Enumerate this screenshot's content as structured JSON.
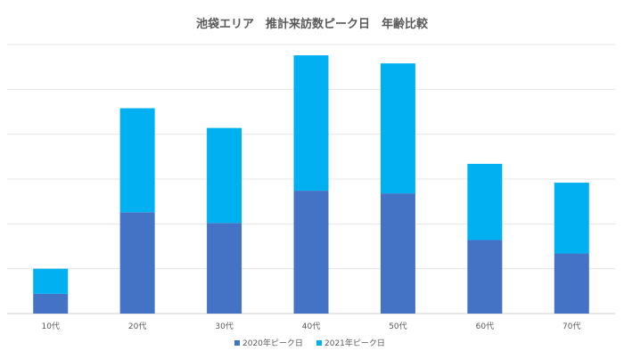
{
  "chart_data": {
    "type": "bar",
    "stacked": true,
    "title": "池袋エリア　推計来訪数ピーク日　年齢比較",
    "categories": [
      "10代",
      "20代",
      "30代",
      "40代",
      "50代",
      "60代",
      "70代"
    ],
    "series": [
      {
        "name": "2020年ピーク日",
        "color": "#4472C4",
        "values": [
          4.4,
          22.6,
          20.2,
          27.4,
          26.8,
          16.4,
          13.4
        ]
      },
      {
        "name": "2021年ピーク日",
        "color": "#00B0F0",
        "values": [
          5.6,
          23.2,
          21.2,
          30.2,
          29.0,
          17.0,
          15.8
        ]
      }
    ],
    "ylim": [
      0,
      61
    ],
    "gridlines": [
      0,
      10,
      20,
      30,
      40,
      50,
      60
    ],
    "grid": true,
    "y_tick_labels_shown": false,
    "legend_position": "bottom"
  }
}
